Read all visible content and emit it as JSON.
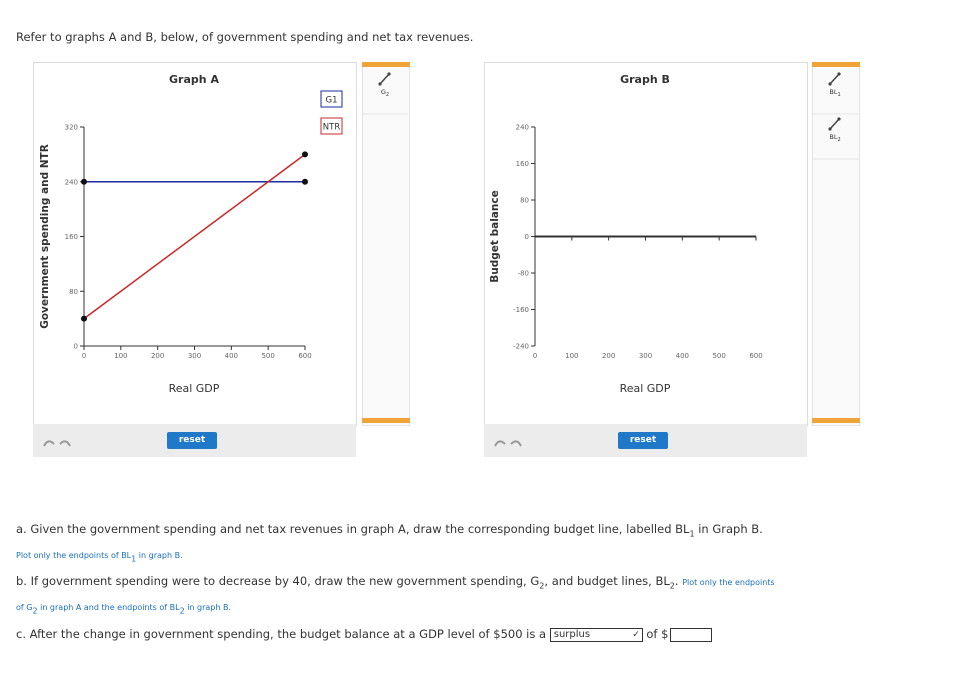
{
  "instruction": "Refer to graphs A and B, below, of government spending and net tax revenues.",
  "chart_data": [
    {
      "type": "line",
      "title": "Graph A",
      "x_label": "Real GDP",
      "y_label": "Government spending and NTR",
      "xlim": [
        0,
        600
      ],
      "xticks": [
        0,
        100,
        200,
        300,
        400,
        500,
        600
      ],
      "ylim": [
        0,
        320
      ],
      "yticks": [
        0,
        80,
        160,
        240,
        320
      ],
      "series": [
        {
          "name": "G1",
          "color": "#1c2a9c",
          "x": [
            0,
            600
          ],
          "values": [
            240,
            240
          ]
        },
        {
          "name": "NTR",
          "color": "#c8282a",
          "x": [
            0,
            600
          ],
          "values": [
            40,
            280
          ]
        }
      ],
      "tools": [
        {
          "t": "G",
          "sub": "2"
        }
      ],
      "button": "reset"
    },
    {
      "type": "line",
      "title": "Graph B",
      "x_label": "Real GDP",
      "y_label": "Budget balance",
      "xlim": [
        0,
        600
      ],
      "xticks": [
        0,
        100,
        200,
        300,
        400,
        500,
        600
      ],
      "ylim": [
        -240,
        240
      ],
      "yticks": [
        -240,
        -160,
        -80,
        0,
        80,
        160,
        240
      ],
      "series": [],
      "tools": [
        {
          "t": "BL",
          "sub": "1"
        },
        {
          "t": "BL",
          "sub": "2"
        }
      ],
      "button": "reset"
    }
  ],
  "questions": [
    [
      {
        "t": "a. Given the government spending and net tax revenues in graph A, draw the corresponding budget line, labelled BL"
      },
      {
        "sub": "1"
      },
      {
        "t": " in Graph B. "
      },
      {
        "note": "Plot only the endpoints of BL"
      },
      {
        "note_sub": "1"
      },
      {
        "note": " in graph B."
      }
    ],
    [
      {
        "t": "b. If government spending were to decrease by 40, draw the new government spending, G"
      },
      {
        "sub": "2"
      },
      {
        "t": ", and budget lines, BL"
      },
      {
        "sub": "2"
      },
      {
        "t": ". "
      },
      {
        "note": "Plot only the endpoints of G"
      },
      {
        "note_sub": "2"
      },
      {
        "note": " in graph A and the endpoints of BL"
      },
      {
        "note_sub": "2"
      },
      {
        "note": " in graph B."
      }
    ],
    [
      {
        "t": "c. After the change in government spending, the budget balance at a GDP level of $500 is a "
      },
      {
        "select": "surplus"
      },
      {
        "t": " of $"
      }
    ]
  ]
}
